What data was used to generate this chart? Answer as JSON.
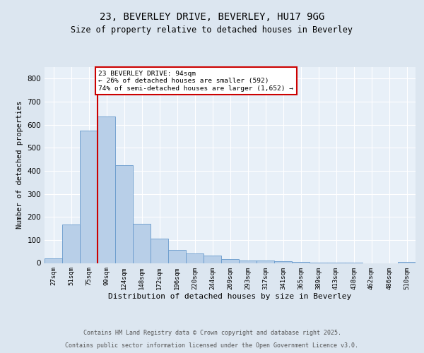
{
  "title1": "23, BEVERLEY DRIVE, BEVERLEY, HU17 9GG",
  "title2": "Size of property relative to detached houses in Beverley",
  "xlabel": "Distribution of detached houses by size in Beverley",
  "ylabel": "Number of detached properties",
  "bin_labels": [
    "27sqm",
    "51sqm",
    "75sqm",
    "99sqm",
    "124sqm",
    "148sqm",
    "172sqm",
    "196sqm",
    "220sqm",
    "244sqm",
    "269sqm",
    "293sqm",
    "317sqm",
    "341sqm",
    "365sqm",
    "389sqm",
    "413sqm",
    "438sqm",
    "462sqm",
    "486sqm",
    "510sqm"
  ],
  "bar_values": [
    20,
    168,
    575,
    635,
    425,
    170,
    105,
    57,
    42,
    33,
    17,
    10,
    10,
    7,
    5,
    3,
    3,
    1,
    0,
    0,
    6
  ],
  "bar_color": "#b8cfe8",
  "bar_edge_color": "#6699cc",
  "vline_x": 3,
  "vline_color": "#cc0000",
  "annotation_text": "23 BEVERLEY DRIVE: 94sqm\n← 26% of detached houses are smaller (592)\n74% of semi-detached houses are larger (1,652) →",
  "annotation_box_color": "#ffffff",
  "annotation_box_edge_color": "#cc0000",
  "ylim": [
    0,
    850
  ],
  "yticks": [
    0,
    100,
    200,
    300,
    400,
    500,
    600,
    700,
    800
  ],
  "footer1": "Contains HM Land Registry data © Crown copyright and database right 2025.",
  "footer2": "Contains public sector information licensed under the Open Government Licence v3.0.",
  "bg_color": "#dce6f0",
  "plot_bg_color": "#e8f0f8"
}
